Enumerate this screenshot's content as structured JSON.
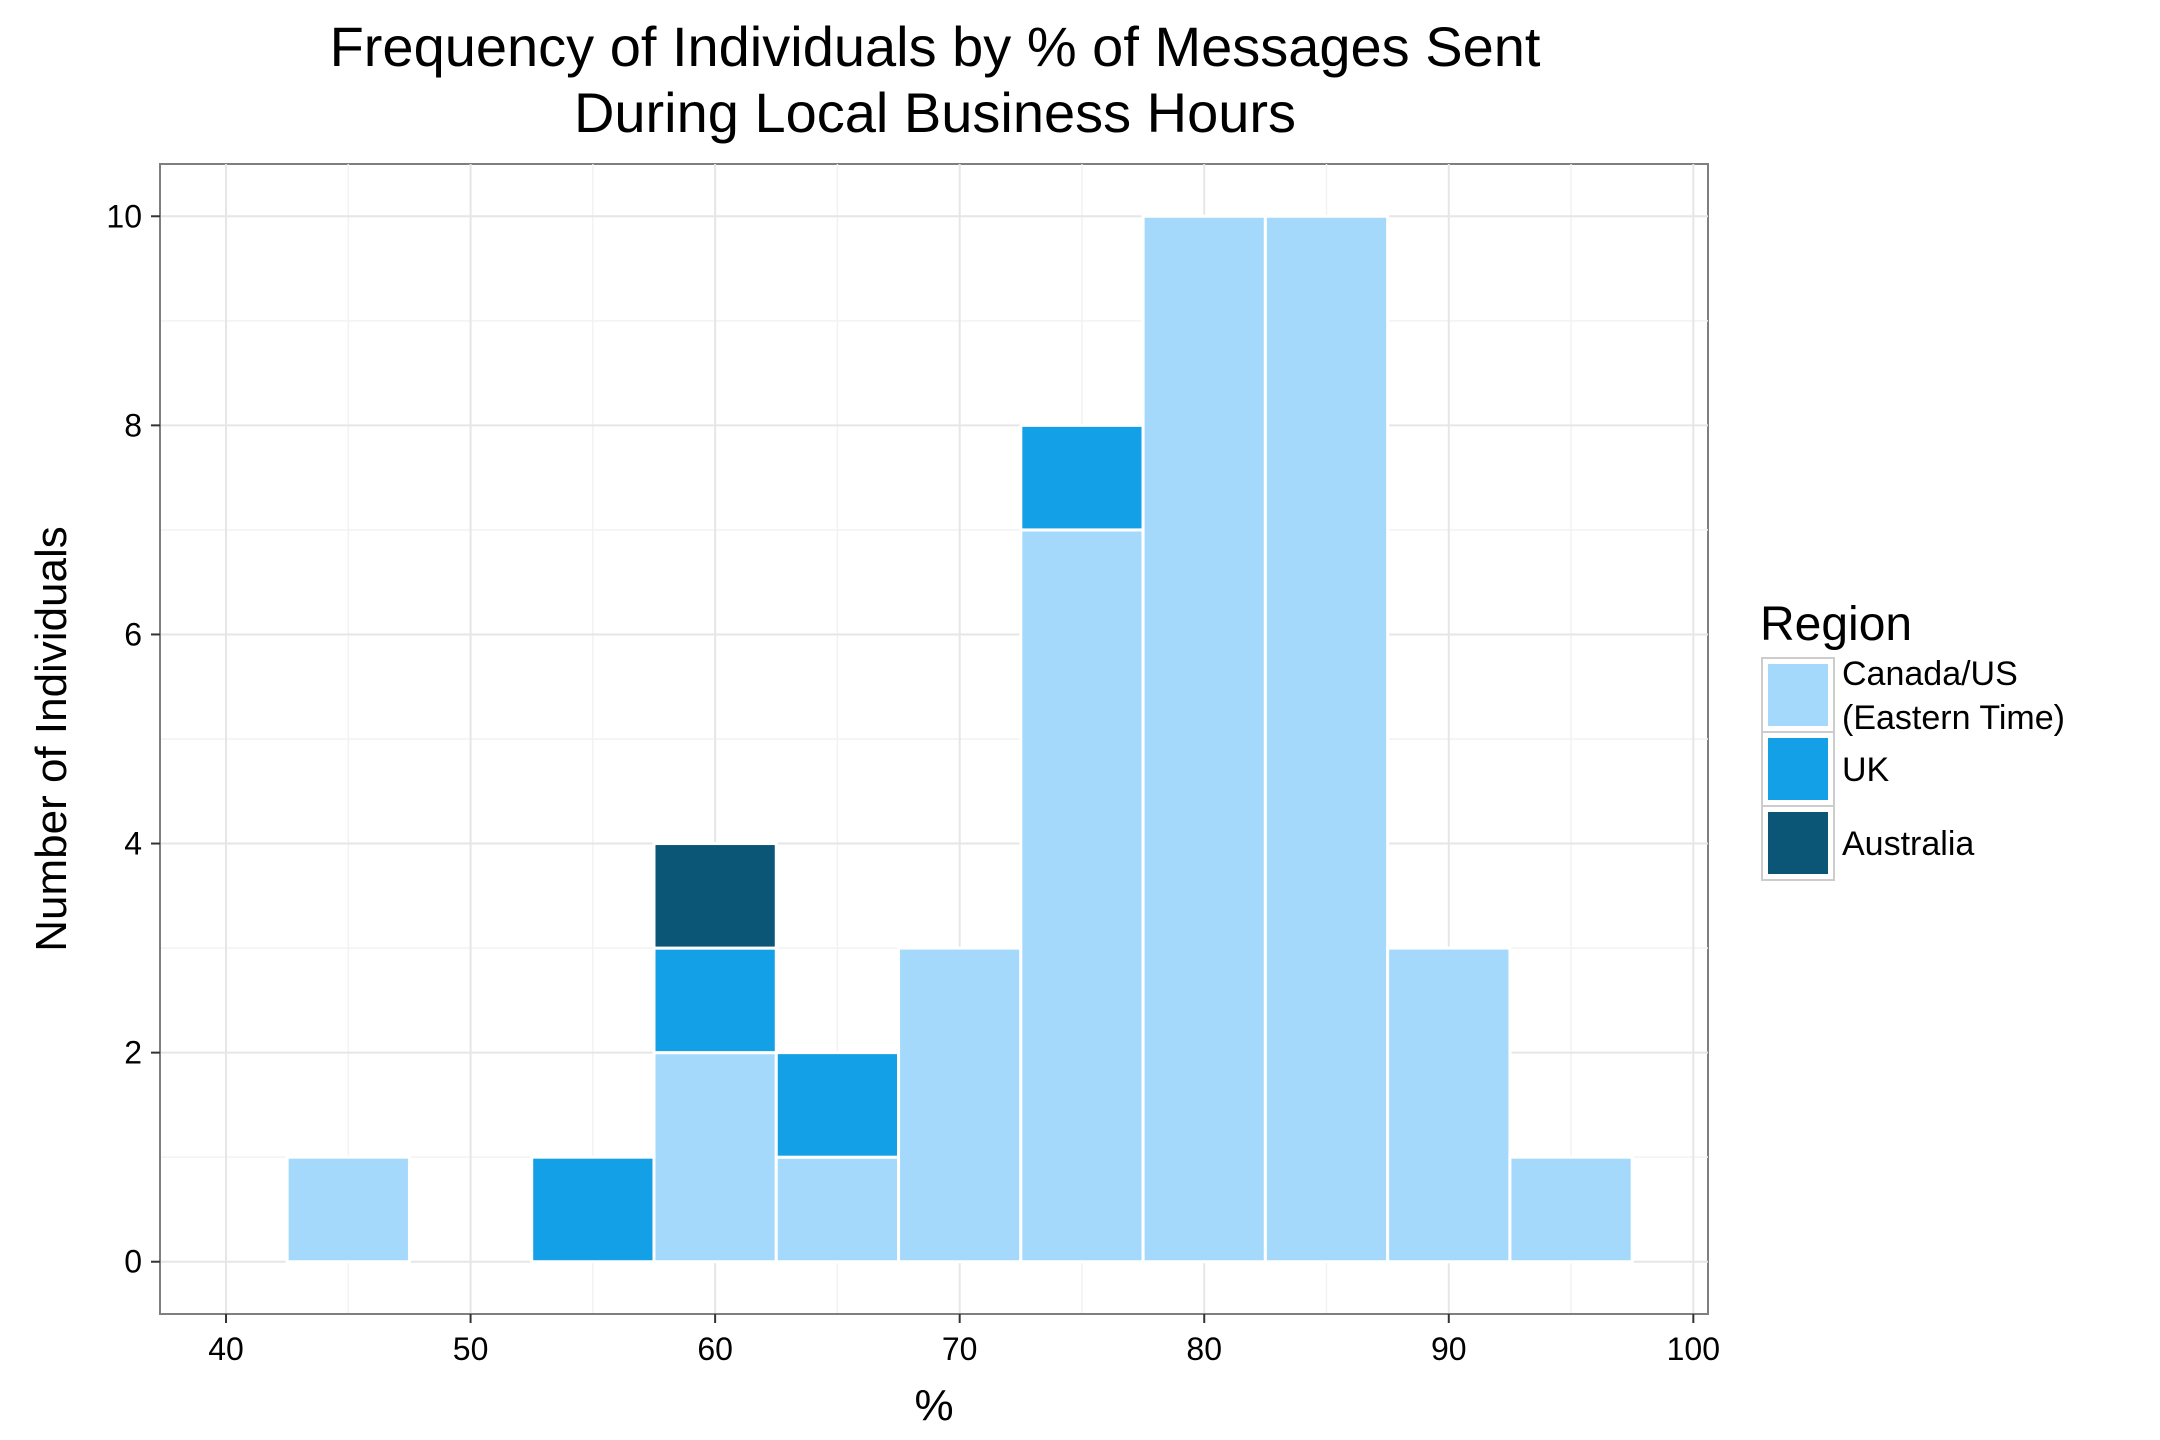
{
  "chart_data": {
    "type": "bar",
    "subtype": "stacked histogram",
    "title": [
      "Frequency of Individuals by % of Messages Sent",
      "During Local Business Hours"
    ],
    "xlabel": "%",
    "ylabel": "Number of Individuals",
    "xlim": [
      40,
      100
    ],
    "ylim": [
      0,
      10
    ],
    "x_ticks": [
      40,
      50,
      60,
      70,
      80,
      90,
      100
    ],
    "y_ticks": [
      0,
      2,
      4,
      6,
      8,
      10
    ],
    "grid": true,
    "legend": {
      "title": "Region",
      "placement": "right",
      "entries": [
        {
          "series": "Canada/US (Eastern Time)",
          "lines": [
            "Canada/US",
            "(Eastern Time)"
          ]
        },
        {
          "series": "UK",
          "lines": [
            "UK"
          ]
        },
        {
          "series": "Australia",
          "lines": [
            "Australia"
          ]
        }
      ]
    },
    "bin_width": 5,
    "bin_centers": [
      45,
      50,
      55,
      60,
      65,
      70,
      75,
      80,
      85,
      90,
      95
    ],
    "series": [
      {
        "name": "Canada/US (Eastern Time)",
        "color": "#a4d9fc",
        "values": [
          1,
          0,
          0,
          2,
          1,
          3,
          7,
          10,
          10,
          3,
          1
        ]
      },
      {
        "name": "UK",
        "color": "#14a0e6",
        "values": [
          0,
          0,
          1,
          1,
          1,
          0,
          1,
          0,
          0,
          0,
          0
        ]
      },
      {
        "name": "Australia",
        "color": "#0b5577",
        "values": [
          0,
          0,
          0,
          1,
          0,
          0,
          0,
          0,
          0,
          0,
          0
        ]
      }
    ]
  }
}
